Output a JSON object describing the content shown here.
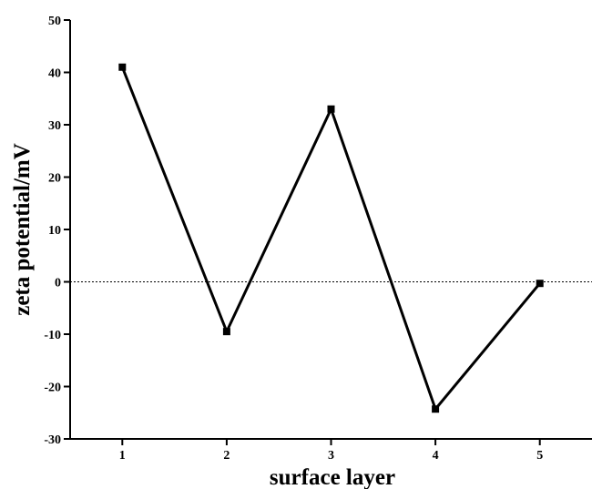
{
  "chart_data": {
    "type": "line",
    "xlabel": "surface layer",
    "ylabel": "zeta potential/mV",
    "x": [
      1,
      2,
      3,
      4,
      5
    ],
    "series": [
      {
        "values": [
          41,
          -9.5,
          33,
          -24.3,
          -0.3
        ]
      }
    ],
    "xlim": [
      0.5,
      5.5
    ],
    "ylim": [
      -30,
      50
    ],
    "xticks": [
      1,
      2,
      3,
      4,
      5
    ],
    "yticks": [
      50,
      40,
      30,
      20,
      10,
      0,
      -10,
      -20,
      -30
    ],
    "xtick_labels": [
      "1",
      "2",
      "3",
      "4",
      "5"
    ],
    "ytick_labels": [
      "50",
      "40",
      "30",
      "20",
      "10",
      "0",
      "-10",
      "-20",
      "-30"
    ],
    "reference_line": {
      "y": 0,
      "style": "dotted"
    },
    "marker": "square",
    "line_color": "#000000",
    "grid": false
  }
}
